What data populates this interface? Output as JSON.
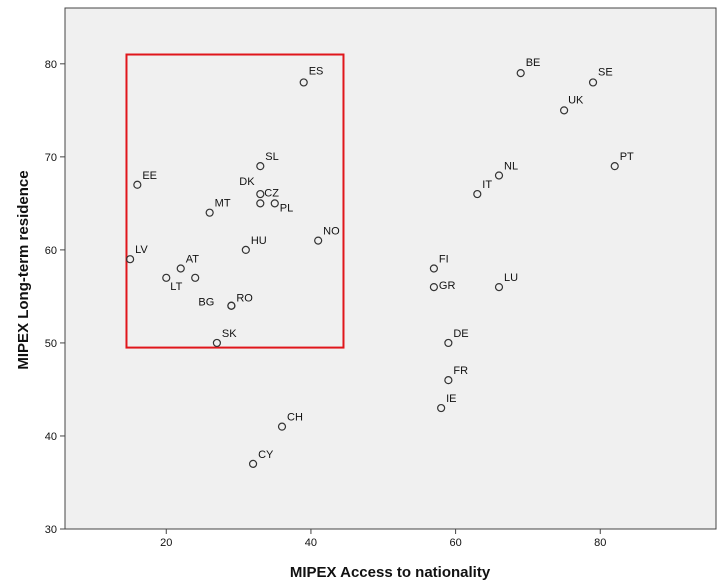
{
  "chart_data": {
    "type": "scatter",
    "title": "",
    "xlabel": "MIPEX Access to nationality",
    "ylabel": "MIPEX Long-term residence",
    "xlim": [
      6,
      96
    ],
    "ylim": [
      30,
      86
    ],
    "xticks": [
      20,
      40,
      60,
      80
    ],
    "yticks": [
      30,
      40,
      50,
      60,
      70,
      80
    ],
    "grid": false,
    "colors": {
      "plot_bg": "#f0f0f0",
      "highlight_box": "#e0161b",
      "marker": "#333333"
    },
    "highlight_region": {
      "x": [
        14.5,
        44.5
      ],
      "y": [
        49.5,
        81
      ]
    },
    "points": [
      {
        "label": "BE",
        "x": 69,
        "y": 79
      },
      {
        "label": "SE",
        "x": 79,
        "y": 78
      },
      {
        "label": "UK",
        "x": 75,
        "y": 75
      },
      {
        "label": "PT",
        "x": 82,
        "y": 69
      },
      {
        "label": "NL",
        "x": 66,
        "y": 68
      },
      {
        "label": "IT",
        "x": 63,
        "y": 66
      },
      {
        "label": "ES",
        "x": 39,
        "y": 78
      },
      {
        "label": "SL",
        "x": 33,
        "y": 69
      },
      {
        "label": "DK",
        "x": 33,
        "y": 66
      },
      {
        "label": "CZ",
        "x": 33,
        "y": 65
      },
      {
        "label": "PL",
        "x": 35,
        "y": 65
      },
      {
        "label": "EE",
        "x": 16,
        "y": 67
      },
      {
        "label": "MT",
        "x": 26,
        "y": 64
      },
      {
        "label": "NO",
        "x": 41,
        "y": 61
      },
      {
        "label": "HU",
        "x": 31,
        "y": 60
      },
      {
        "label": "LV",
        "x": 15,
        "y": 59
      },
      {
        "label": "AT",
        "x": 22,
        "y": 58
      },
      {
        "label": "LT",
        "x": 20,
        "y": 57
      },
      {
        "label": "",
        "x": 24,
        "y": 57
      },
      {
        "label": "BG",
        "x": 29,
        "y": 54
      },
      {
        "label": "RO",
        "x": 29,
        "y": 54
      },
      {
        "label": "SK",
        "x": 27,
        "y": 50
      },
      {
        "label": "FI",
        "x": 57,
        "y": 58
      },
      {
        "label": "GR",
        "x": 57,
        "y": 56
      },
      {
        "label": "LU",
        "x": 66,
        "y": 56
      },
      {
        "label": "DE",
        "x": 59,
        "y": 50
      },
      {
        "label": "FR",
        "x": 59,
        "y": 46
      },
      {
        "label": "IE",
        "x": 58,
        "y": 43
      },
      {
        "label": "CH",
        "x": 36,
        "y": 41
      },
      {
        "label": "CY",
        "x": 32,
        "y": 37
      }
    ]
  }
}
